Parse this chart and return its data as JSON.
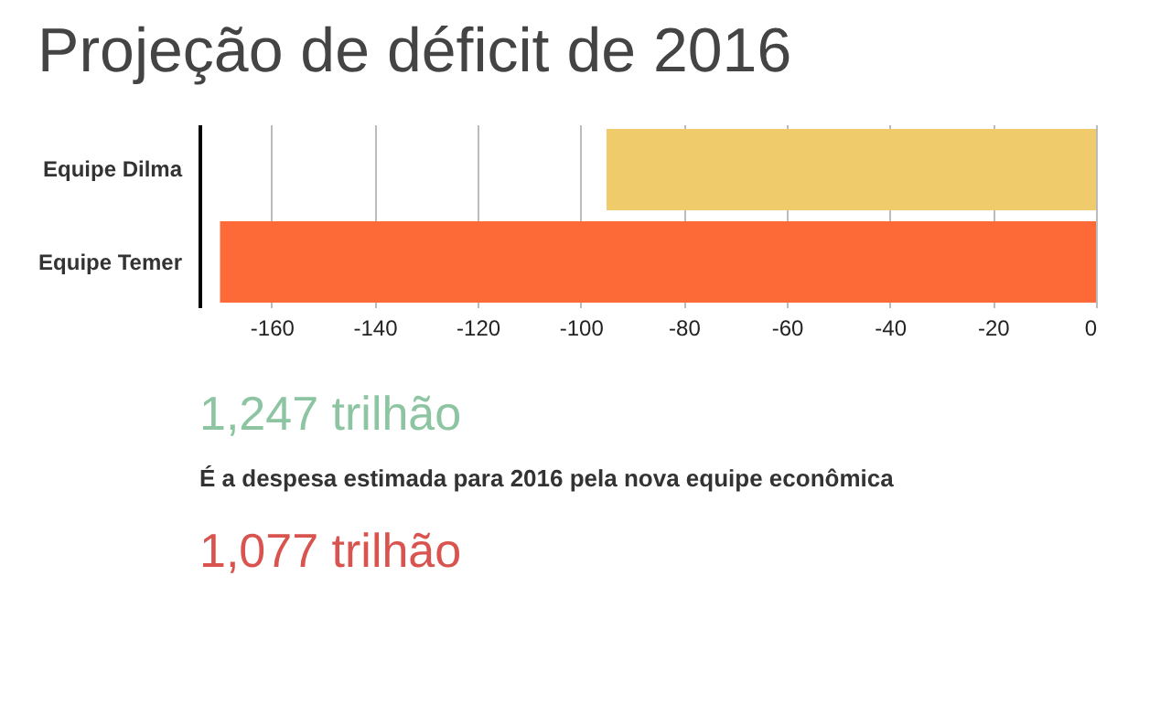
{
  "chart_data": {
    "type": "bar",
    "orientation": "horizontal",
    "title": "Projeção de déficit de 2016",
    "categories": [
      "Equipe Dilma",
      "Equipe Temer"
    ],
    "values": [
      -95,
      -170
    ],
    "colors": [
      "#efcb6b",
      "#fd6a37"
    ],
    "xlim": [
      -174,
      0
    ],
    "xticks": [
      -160,
      -140,
      -120,
      -100,
      -80,
      -60,
      -40,
      -20,
      0
    ],
    "grid": "x",
    "annotations": [
      "1,247 trilhão",
      "É a despesa estimada para 2016 pela nova equipe econômica",
      "1,077 trilhão"
    ]
  }
}
